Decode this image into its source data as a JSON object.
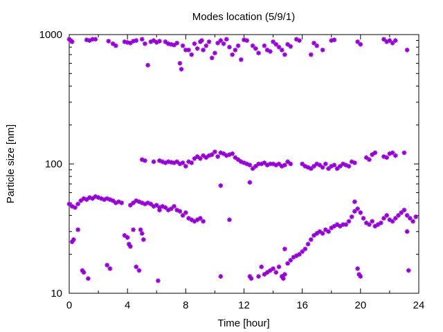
{
  "chart_data": {
    "type": "scatter",
    "title": "Modes location (5/9/1)",
    "xlabel": "Time [hour]",
    "ylabel": "Particle size [nm]",
    "xlim": [
      0,
      24
    ],
    "ylim": [
      10,
      1000
    ],
    "yscale": "log",
    "grid": false,
    "xticks": [
      0,
      4,
      8,
      12,
      16,
      20,
      24
    ],
    "xtick_labels": [
      "0",
      "4",
      "8",
      "12",
      "16",
      "20",
      "24"
    ],
    "yticks": [
      10,
      100,
      1000
    ],
    "ytick_labels": [
      "10",
      "100",
      "1000"
    ],
    "marker_color": "#9400d3",
    "series": [
      {
        "points": [
          [
            0.0,
            920
          ],
          [
            0.1,
            900
          ],
          [
            0.2,
            880
          ],
          [
            1.2,
            910
          ],
          [
            1.4,
            900
          ],
          [
            1.6,
            920
          ],
          [
            1.8,
            920
          ],
          [
            2.7,
            890
          ],
          [
            3.0,
            850
          ],
          [
            3.2,
            820
          ],
          [
            3.8,
            880
          ],
          [
            4.0,
            870
          ],
          [
            4.2,
            860
          ],
          [
            4.4,
            890
          ],
          [
            4.6,
            900
          ],
          [
            5.0,
            920
          ],
          [
            5.2,
            850
          ],
          [
            5.4,
            580
          ],
          [
            5.6,
            880
          ],
          [
            5.8,
            900
          ],
          [
            6.0,
            870
          ],
          [
            6.2,
            890
          ],
          [
            6.6,
            880
          ],
          [
            6.8,
            850
          ],
          [
            7.0,
            840
          ],
          [
            7.2,
            830
          ],
          [
            7.4,
            860
          ],
          [
            7.6,
            600
          ],
          [
            7.7,
            540
          ],
          [
            7.8,
            820
          ],
          [
            8.0,
            760
          ],
          [
            8.2,
            760
          ],
          [
            8.4,
            700
          ],
          [
            8.6,
            850
          ],
          [
            8.8,
            780
          ],
          [
            9.0,
            880
          ],
          [
            9.1,
            900
          ],
          [
            9.2,
            760
          ],
          [
            9.4,
            820
          ],
          [
            9.6,
            880
          ],
          [
            9.8,
            660
          ],
          [
            10.0,
            720
          ],
          [
            10.2,
            860
          ],
          [
            10.4,
            900
          ],
          [
            10.6,
            850
          ],
          [
            10.8,
            920
          ],
          [
            11.0,
            800
          ],
          [
            11.2,
            700
          ],
          [
            11.4,
            760
          ],
          [
            11.6,
            820
          ],
          [
            11.8,
            640
          ],
          [
            12.0,
            910
          ],
          [
            12.2,
            900
          ],
          [
            12.6,
            820
          ],
          [
            12.8,
            780
          ],
          [
            13.0,
            720
          ],
          [
            13.4,
            820
          ],
          [
            13.6,
            760
          ],
          [
            13.8,
            740
          ],
          [
            14.0,
            880
          ],
          [
            14.2,
            840
          ],
          [
            14.4,
            800
          ],
          [
            14.6,
            760
          ],
          [
            14.8,
            700
          ],
          [
            15.0,
            840
          ],
          [
            15.2,
            810
          ],
          [
            15.6,
            920
          ],
          [
            15.8,
            900
          ],
          [
            16.6,
            700
          ],
          [
            16.8,
            860
          ],
          [
            17.0,
            820
          ],
          [
            17.4,
            760
          ],
          [
            18.0,
            900
          ],
          [
            18.2,
            910
          ],
          [
            19.8,
            880
          ],
          [
            20.0,
            840
          ],
          [
            21.6,
            920
          ],
          [
            21.8,
            880
          ],
          [
            22.0,
            900
          ],
          [
            22.2,
            860
          ],
          [
            22.4,
            900
          ],
          [
            23.2,
            760
          ],
          [
            5.0,
            108
          ],
          [
            5.2,
            106
          ],
          [
            5.8,
            104
          ],
          [
            6.2,
            106
          ],
          [
            6.4,
            104
          ],
          [
            6.6,
            102
          ],
          [
            6.8,
            104
          ],
          [
            7.0,
            103
          ],
          [
            7.2,
            102
          ],
          [
            7.4,
            104
          ],
          [
            7.6,
            100
          ],
          [
            7.8,
            102
          ],
          [
            8.0,
            96
          ],
          [
            8.2,
            104
          ],
          [
            8.4,
            102
          ],
          [
            8.6,
            110
          ],
          [
            8.8,
            114
          ],
          [
            9.0,
            110
          ],
          [
            9.2,
            116
          ],
          [
            9.4,
            112
          ],
          [
            9.6,
            116
          ],
          [
            9.8,
            118
          ],
          [
            10.0,
            124
          ],
          [
            10.2,
            114
          ],
          [
            10.4,
            122
          ],
          [
            10.6,
            120
          ],
          [
            10.8,
            116
          ],
          [
            11.0,
            118
          ],
          [
            11.2,
            120
          ],
          [
            11.4,
            112
          ],
          [
            11.6,
            108
          ],
          [
            11.8,
            104
          ],
          [
            12.0,
            102
          ],
          [
            12.2,
            100
          ],
          [
            12.4,
            98
          ],
          [
            12.6,
            92
          ],
          [
            12.8,
            96
          ],
          [
            13.0,
            100
          ],
          [
            13.2,
            100
          ],
          [
            13.4,
            102
          ],
          [
            13.6,
            98
          ],
          [
            13.8,
            100
          ],
          [
            14.0,
            100
          ],
          [
            14.2,
            98
          ],
          [
            14.4,
            100
          ],
          [
            14.6,
            96
          ],
          [
            14.8,
            98
          ],
          [
            15.0,
            104
          ],
          [
            15.2,
            100
          ],
          [
            16.0,
            100
          ],
          [
            16.2,
            96
          ],
          [
            16.4,
            94
          ],
          [
            16.6,
            92
          ],
          [
            16.8,
            96
          ],
          [
            17.0,
            100
          ],
          [
            17.2,
            98
          ],
          [
            17.4,
            94
          ],
          [
            17.6,
            100
          ],
          [
            17.8,
            92
          ],
          [
            18.0,
            96
          ],
          [
            18.2,
            98
          ],
          [
            18.4,
            92
          ],
          [
            18.6,
            96
          ],
          [
            18.8,
            100
          ],
          [
            19.0,
            98
          ],
          [
            19.2,
            96
          ],
          [
            19.4,
            104
          ],
          [
            19.6,
            102
          ],
          [
            20.4,
            112
          ],
          [
            20.6,
            108
          ],
          [
            20.8,
            118
          ],
          [
            21.0,
            122
          ],
          [
            21.6,
            114
          ],
          [
            21.8,
            112
          ],
          [
            22.0,
            120
          ],
          [
            22.2,
            122
          ],
          [
            22.4,
            116
          ],
          [
            23.0,
            122
          ],
          [
            10.4,
            68
          ],
          [
            12.4,
            72
          ],
          [
            0.0,
            49
          ],
          [
            0.2,
            47
          ],
          [
            0.4,
            46
          ],
          [
            0.6,
            49
          ],
          [
            0.8,
            52
          ],
          [
            1.0,
            54
          ],
          [
            1.2,
            53
          ],
          [
            1.4,
            55
          ],
          [
            1.6,
            54
          ],
          [
            1.8,
            56
          ],
          [
            2.0,
            55
          ],
          [
            2.2,
            54
          ],
          [
            2.4,
            53
          ],
          [
            2.6,
            54
          ],
          [
            2.8,
            53
          ],
          [
            3.0,
            52
          ],
          [
            3.2,
            50
          ],
          [
            3.4,
            51
          ],
          [
            3.6,
            50
          ],
          [
            4.2,
            48
          ],
          [
            4.4,
            50
          ],
          [
            4.6,
            52
          ],
          [
            4.8,
            51
          ],
          [
            5.0,
            50
          ],
          [
            5.2,
            49
          ],
          [
            5.4,
            50
          ],
          [
            5.6,
            49
          ],
          [
            5.8,
            47
          ],
          [
            6.0,
            48
          ],
          [
            6.2,
            46
          ],
          [
            6.4,
            47
          ],
          [
            6.6,
            46
          ],
          [
            6.8,
            44
          ],
          [
            7.0,
            45
          ],
          [
            7.2,
            47
          ],
          [
            7.4,
            44
          ],
          [
            7.6,
            43
          ],
          [
            7.8,
            40
          ],
          [
            8.0,
            42
          ],
          [
            8.2,
            38
          ],
          [
            8.4,
            37
          ],
          [
            8.6,
            36
          ],
          [
            8.8,
            37
          ],
          [
            9.0,
            38
          ],
          [
            9.2,
            36
          ],
          [
            6.2,
            44
          ],
          [
            0.2,
            25
          ],
          [
            0.3,
            26
          ],
          [
            0.6,
            31
          ],
          [
            0.9,
            15
          ],
          [
            1.0,
            14.5
          ],
          [
            1.3,
            13
          ],
          [
            2.6,
            16.5
          ],
          [
            2.8,
            15.5
          ],
          [
            3.8,
            28
          ],
          [
            4.0,
            27
          ],
          [
            4.1,
            24
          ],
          [
            4.2,
            23
          ],
          [
            4.4,
            31
          ],
          [
            4.6,
            16
          ],
          [
            4.8,
            15
          ],
          [
            4.9,
            31
          ],
          [
            5.0,
            29
          ],
          [
            5.1,
            26
          ],
          [
            6.1,
            12.5
          ],
          [
            10.4,
            13.5
          ],
          [
            11.0,
            37
          ],
          [
            12.4,
            13.5
          ],
          [
            12.5,
            13
          ],
          [
            13.0,
            13.5
          ],
          [
            13.2,
            16
          ],
          [
            13.4,
            14
          ],
          [
            13.6,
            14.5
          ],
          [
            13.8,
            15
          ],
          [
            14.0,
            15.5
          ],
          [
            14.2,
            14.5
          ],
          [
            14.4,
            16
          ],
          [
            14.6,
            13.5
          ],
          [
            14.7,
            13
          ],
          [
            14.8,
            14
          ],
          [
            15.0,
            17
          ],
          [
            15.2,
            18
          ],
          [
            15.4,
            19
          ],
          [
            15.6,
            19.5
          ],
          [
            15.8,
            20
          ],
          [
            16.0,
            21
          ],
          [
            16.2,
            22
          ],
          [
            16.4,
            24
          ],
          [
            16.6,
            26
          ],
          [
            16.8,
            28
          ],
          [
            17.0,
            29
          ],
          [
            17.2,
            30
          ],
          [
            17.4,
            29
          ],
          [
            17.6,
            31
          ],
          [
            17.8,
            30
          ],
          [
            18.0,
            32
          ],
          [
            18.2,
            33
          ],
          [
            18.4,
            34
          ],
          [
            18.6,
            33
          ],
          [
            18.8,
            34
          ],
          [
            19.0,
            34
          ],
          [
            19.2,
            36
          ],
          [
            19.4,
            39
          ],
          [
            19.6,
            43
          ],
          [
            19.8,
            45
          ],
          [
            20.0,
            42
          ],
          [
            20.2,
            38
          ],
          [
            20.4,
            35
          ],
          [
            20.6,
            34
          ],
          [
            20.8,
            36
          ],
          [
            21.0,
            33
          ],
          [
            21.2,
            34
          ],
          [
            21.4,
            35
          ],
          [
            21.6,
            38
          ],
          [
            21.8,
            40
          ],
          [
            22.0,
            37
          ],
          [
            22.2,
            36
          ],
          [
            22.4,
            38
          ],
          [
            22.6,
            40
          ],
          [
            22.8,
            42
          ],
          [
            23.0,
            44
          ],
          [
            23.2,
            40
          ],
          [
            23.4,
            38
          ],
          [
            23.6,
            36
          ],
          [
            23.8,
            39
          ],
          [
            19.8,
            15.5
          ],
          [
            19.9,
            14
          ],
          [
            20.0,
            13.5
          ],
          [
            19.6,
            51
          ],
          [
            14.8,
            22
          ],
          [
            23.3,
            15
          ],
          [
            23.2,
            30
          ]
        ]
      }
    ]
  }
}
